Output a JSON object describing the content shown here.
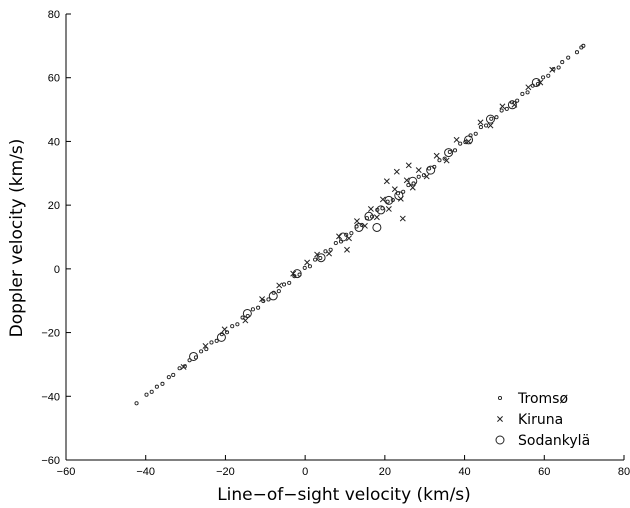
{
  "chart_data": {
    "type": "scatter",
    "xlabel": "Line−of−sight velocity (km/s)",
    "ylabel": "Doppler velocity (km/s)",
    "xlim": [
      -60,
      80
    ],
    "ylim": [
      -60,
      80
    ],
    "xticks": [
      -60,
      -40,
      -20,
      0,
      20,
      40,
      60,
      80
    ],
    "yticks": [
      -60,
      -40,
      -20,
      0,
      20,
      40,
      60,
      80
    ],
    "xtick_labels": [
      "−60",
      "−40",
      "−20",
      "0",
      "20",
      "40",
      "60",
      "80"
    ],
    "ytick_labels": [
      "−60",
      "−40",
      "−20",
      "0",
      "20",
      "40",
      "60",
      "80"
    ],
    "grid": false,
    "legend_position": "bottom-right",
    "series": [
      {
        "name": "Tromsø",
        "marker": "dot",
        "points": [
          [
            -42.3,
            -42.2
          ],
          [
            -39.8,
            -39.5
          ],
          [
            -38.5,
            -38.6
          ],
          [
            -37.2,
            -37.0
          ],
          [
            -35.8,
            -36.1
          ],
          [
            -34.2,
            -34.0
          ],
          [
            -33.1,
            -33.3
          ],
          [
            -31.5,
            -31.2
          ],
          [
            -30.2,
            -30.6
          ],
          [
            -29.0,
            -28.7
          ],
          [
            -27.4,
            -27.8
          ],
          [
            -26.1,
            -25.9
          ],
          [
            -24.8,
            -25.2
          ],
          [
            -23.5,
            -23.1
          ],
          [
            -22.2,
            -22.6
          ],
          [
            -20.9,
            -20.5
          ],
          [
            -19.6,
            -19.9
          ],
          [
            -18.3,
            -18.0
          ],
          [
            -17.0,
            -17.4
          ],
          [
            -15.7,
            -15.3
          ],
          [
            -14.4,
            -14.8
          ],
          [
            -13.1,
            -12.7
          ],
          [
            -11.8,
            -12.2
          ],
          [
            -10.5,
            -10.1
          ],
          [
            -9.2,
            -9.6
          ],
          [
            -7.9,
            -7.5
          ],
          [
            -6.6,
            -7.0
          ],
          [
            -5.3,
            -4.9
          ],
          [
            -4.0,
            -4.4
          ],
          [
            -2.7,
            -2.3
          ],
          [
            -1.4,
            -1.8
          ],
          [
            -0.1,
            0.3
          ],
          [
            1.2,
            0.8
          ],
          [
            2.5,
            2.9
          ],
          [
            3.8,
            3.4
          ],
          [
            5.1,
            5.5
          ],
          [
            6.4,
            6.0
          ],
          [
            7.7,
            8.1
          ],
          [
            9.0,
            8.6
          ],
          [
            10.3,
            10.7
          ],
          [
            11.6,
            11.2
          ],
          [
            12.9,
            13.3
          ],
          [
            14.2,
            13.8
          ],
          [
            15.5,
            15.9
          ],
          [
            16.8,
            16.4
          ],
          [
            18.1,
            18.5
          ],
          [
            19.4,
            19.0
          ],
          [
            20.7,
            21.1
          ],
          [
            22.0,
            21.6
          ],
          [
            23.3,
            23.7
          ],
          [
            24.6,
            24.2
          ],
          [
            25.9,
            26.3
          ],
          [
            27.2,
            26.8
          ],
          [
            28.5,
            28.9
          ],
          [
            29.8,
            29.4
          ],
          [
            31.1,
            31.5
          ],
          [
            32.4,
            32.0
          ],
          [
            33.7,
            34.1
          ],
          [
            35.0,
            34.6
          ],
          [
            36.3,
            36.7
          ],
          [
            37.6,
            37.2
          ],
          [
            38.9,
            39.3
          ],
          [
            40.2,
            39.8
          ],
          [
            41.5,
            41.9
          ],
          [
            42.8,
            42.4
          ],
          [
            44.1,
            44.5
          ],
          [
            45.4,
            45.0
          ],
          [
            46.7,
            47.1
          ],
          [
            48.0,
            47.6
          ],
          [
            49.3,
            49.7
          ],
          [
            50.6,
            50.2
          ],
          [
            51.9,
            52.3
          ],
          [
            53.2,
            52.8
          ],
          [
            54.5,
            54.9
          ],
          [
            55.8,
            55.4
          ],
          [
            57.1,
            57.5
          ],
          [
            58.4,
            58.0
          ],
          [
            59.7,
            60.1
          ],
          [
            61.0,
            60.6
          ],
          [
            62.3,
            62.7
          ],
          [
            63.6,
            63.2
          ],
          [
            64.5,
            64.9
          ],
          [
            66.0,
            66.3
          ],
          [
            68.2,
            68.0
          ],
          [
            69.3,
            69.5
          ],
          [
            69.8,
            70.0
          ]
        ]
      },
      {
        "name": "Kiruna",
        "marker": "x",
        "points": [
          [
            -30.5,
            -30.8
          ],
          [
            -25.0,
            -24.2
          ],
          [
            -20.2,
            -19.0
          ],
          [
            -15.0,
            -16.2
          ],
          [
            -10.8,
            -9.5
          ],
          [
            -6.5,
            -5.2
          ],
          [
            -3.0,
            -1.5
          ],
          [
            0.5,
            2.0
          ],
          [
            3.0,
            4.5
          ],
          [
            6.0,
            4.8
          ],
          [
            8.5,
            10.2
          ],
          [
            11.0,
            9.6
          ],
          [
            13.0,
            15.0
          ],
          [
            15.0,
            13.5
          ],
          [
            16.5,
            18.8
          ],
          [
            18.0,
            16.2
          ],
          [
            19.5,
            21.8
          ],
          [
            21.0,
            18.8
          ],
          [
            22.5,
            25.0
          ],
          [
            24.0,
            22.0
          ],
          [
            25.5,
            27.8
          ],
          [
            27.0,
            25.5
          ],
          [
            28.5,
            31.0
          ],
          [
            30.5,
            29.0
          ],
          [
            33.0,
            35.5
          ],
          [
            35.5,
            34.0
          ],
          [
            38.0,
            40.5
          ],
          [
            41.0,
            40.0
          ],
          [
            44.0,
            46.0
          ],
          [
            46.5,
            45.0
          ],
          [
            49.5,
            51.0
          ],
          [
            52.5,
            51.5
          ],
          [
            56.0,
            57.0
          ],
          [
            59.0,
            58.5
          ],
          [
            62.0,
            62.5
          ],
          [
            23.0,
            30.5
          ],
          [
            24.5,
            15.8
          ],
          [
            20.5,
            27.5
          ],
          [
            10.5,
            6.0
          ],
          [
            26.0,
            32.5
          ]
        ]
      },
      {
        "name": "Sodankylä",
        "marker": "circle",
        "points": [
          [
            -28.0,
            -27.5
          ],
          [
            -21.0,
            -21.5
          ],
          [
            -14.5,
            -14.0
          ],
          [
            -8.0,
            -8.5
          ],
          [
            -2.0,
            -1.5
          ],
          [
            4.0,
            3.5
          ],
          [
            9.5,
            10.0
          ],
          [
            13.5,
            13.0
          ],
          [
            16.0,
            16.5
          ],
          [
            18.0,
            13.0
          ],
          [
            19.0,
            18.5
          ],
          [
            21.0,
            21.5
          ],
          [
            23.5,
            23.0
          ],
          [
            27.0,
            27.5
          ],
          [
            31.5,
            31.0
          ],
          [
            36.0,
            36.5
          ],
          [
            41.0,
            40.5
          ],
          [
            46.5,
            47.0
          ],
          [
            52.0,
            51.5
          ],
          [
            58.0,
            58.5
          ]
        ]
      }
    ]
  }
}
